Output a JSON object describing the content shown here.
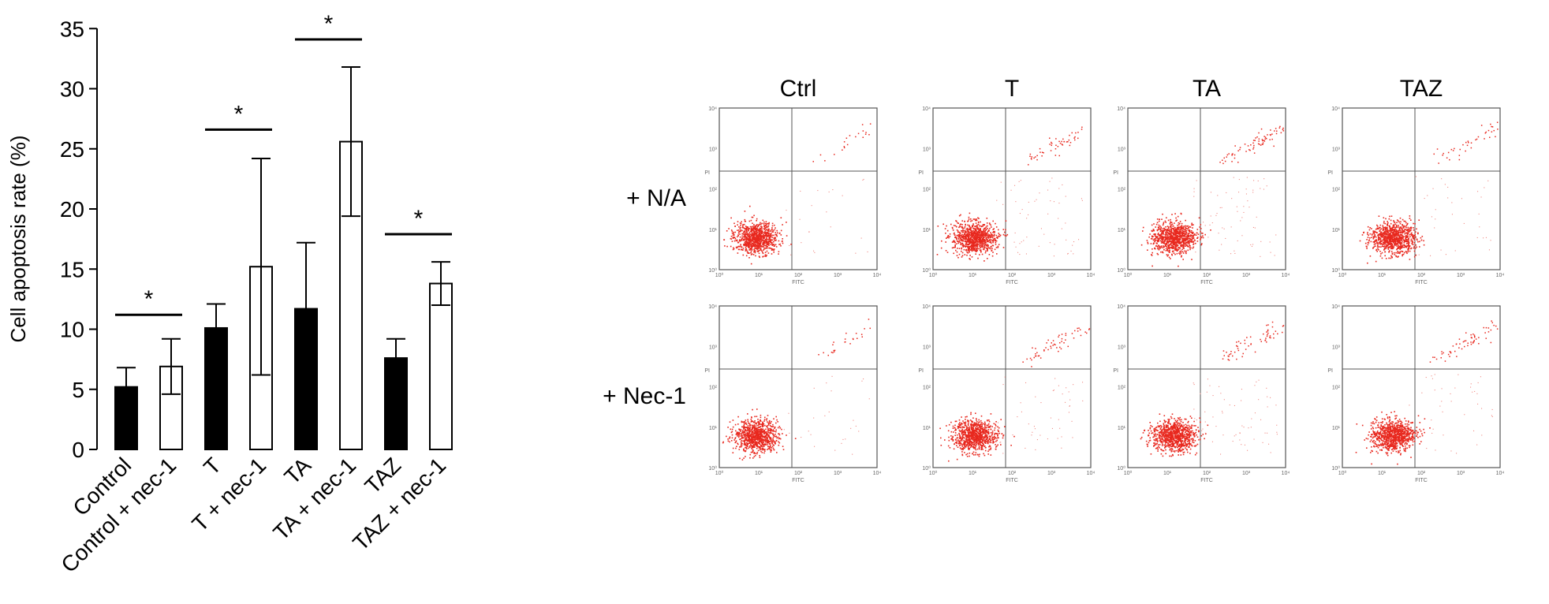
{
  "chart_data": [
    {
      "type": "bar",
      "ylabel": "Cell apoptosis rate (%)",
      "ylim": [
        0,
        35
      ],
      "yticks": [
        0,
        5,
        10,
        15,
        20,
        25,
        30,
        35
      ],
      "categories": [
        "Control",
        "Control + nec-1",
        "T",
        "T + nec-1",
        "TA",
        "TA + nec-1",
        "TAZ",
        "TAZ + nec-1"
      ],
      "values": [
        5.2,
        6.9,
        10.1,
        15.2,
        11.7,
        25.6,
        7.6,
        13.8
      ],
      "errors": [
        1.6,
        2.3,
        2.0,
        9.0,
        5.5,
        6.2,
        1.6,
        1.8
      ],
      "fills": [
        "black",
        "white",
        "black",
        "white",
        "black",
        "white",
        "black",
        "white"
      ],
      "significance": [
        {
          "from": 0,
          "to": 1,
          "y": 11.2,
          "label": "*"
        },
        {
          "from": 2,
          "to": 3,
          "y": 26.6,
          "label": "*"
        },
        {
          "from": 4,
          "to": 5,
          "y": 34.1,
          "label": "*"
        },
        {
          "from": 6,
          "to": 7,
          "y": 17.9,
          "label": "*"
        }
      ],
      "grid": false,
      "legend": "none"
    },
    {
      "type": "scatter",
      "panel": "flow cytometry dot plots",
      "columns": [
        "Ctrl",
        "T",
        "TA",
        "TAZ"
      ],
      "rows": [
        "+ N/A",
        "+ Nec-1"
      ],
      "xlabel": "FITC",
      "ylabel": "PI",
      "scale": "log",
      "axis_range": [
        1,
        10000
      ],
      "tick_labels": [
        "10⁰",
        "10¹",
        "10²",
        "10³",
        "10⁴"
      ],
      "point_color": "#e8281e",
      "quadrant_upper_right_density": [
        [
          0.1,
          0.25,
          0.35,
          0.2
        ],
        [
          0.12,
          0.28,
          0.3,
          0.3
        ]
      ],
      "quadrant_lower_right_density": [
        [
          0.1,
          0.25,
          0.3,
          0.15
        ],
        [
          0.12,
          0.22,
          0.3,
          0.18
        ]
      ]
    }
  ]
}
